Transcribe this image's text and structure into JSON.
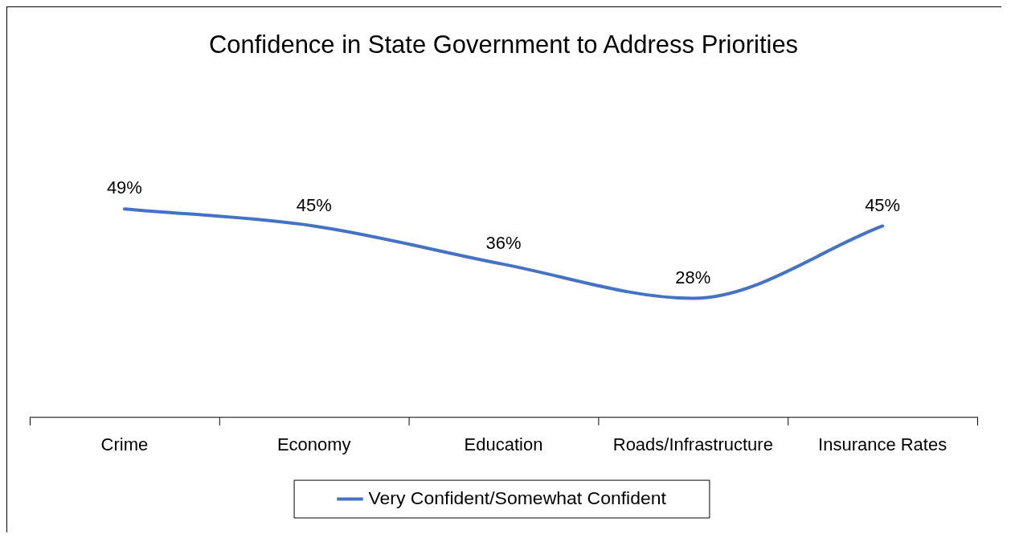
{
  "chart_data": {
    "type": "line",
    "title": "Confidence in State Government to Address Priorities",
    "categories": [
      "Crime",
      "Economy",
      "Education",
      "Roads/Infrastructure",
      "Insurance Rates"
    ],
    "series": [
      {
        "name": "Very Confident/Somewhat Confident",
        "color": "#4472c4",
        "values": [
          49,
          45,
          36,
          28,
          45
        ],
        "value_labels": [
          "49%",
          "45%",
          "36%",
          "28%",
          "45%"
        ]
      }
    ],
    "tick_labels": "x",
    "grid": false,
    "legend": "bottom",
    "marker": "none",
    "line_style": "solid"
  }
}
